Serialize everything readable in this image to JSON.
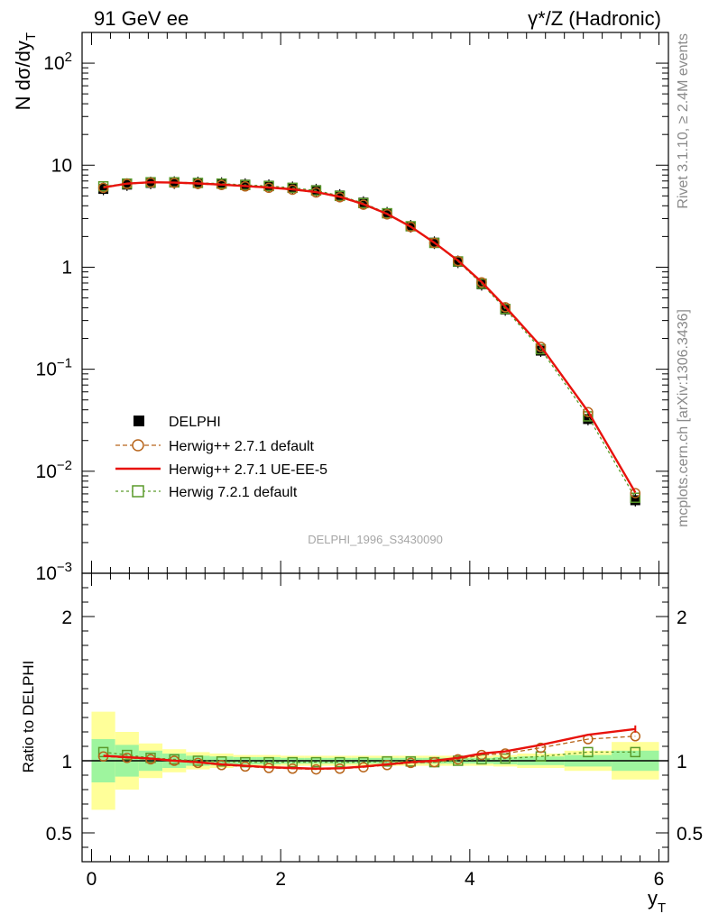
{
  "header": {
    "left": "91 GeV ee",
    "right": "γ*/Z (Hadronic)"
  },
  "side_texts": {
    "rivet": "Rivet 3.1.10, ≥ 2.4M events",
    "mcplots": "mcplots.cern.ch [arXiv:1306.3436]"
  },
  "watermark": "DELPHI_1996_S3430090",
  "chart_data": [
    {
      "type": "scatter",
      "panel": "main",
      "ylabel": "N dσ/dy_T",
      "yscale": "log",
      "ylim": [
        0.001,
        200
      ],
      "xlim": [
        -0.1,
        6.1
      ],
      "yticks": [
        {
          "value": 100,
          "label": "10^2"
        },
        {
          "value": 10,
          "label": "10"
        },
        {
          "value": 1,
          "label": "1"
        },
        {
          "value": 0.1,
          "label": "10^-1"
        },
        {
          "value": 0.01,
          "label": "10^-2"
        },
        {
          "value": 0.001,
          "label": "10^-3"
        }
      ],
      "x": [
        0.125,
        0.375,
        0.625,
        0.875,
        1.125,
        1.375,
        1.625,
        1.875,
        2.125,
        2.375,
        2.625,
        2.875,
        3.125,
        3.375,
        3.625,
        3.875,
        4.125,
        4.375,
        4.75,
        5.25,
        5.75
      ],
      "legend": {
        "position": "bottom-left"
      },
      "series": [
        {
          "name": "DELPHI",
          "style": "data",
          "color": "#000000",
          "values": [
            5.85,
            6.45,
            6.7,
            6.75,
            6.7,
            6.6,
            6.45,
            6.3,
            6.0,
            5.7,
            5.05,
            4.3,
            3.38,
            2.52,
            1.74,
            1.13,
            0.68,
            0.385,
            0.152,
            0.0325,
            0.0052
          ]
        },
        {
          "name": "Herwig++ 2.7.1 default",
          "style": "circle-dashed",
          "color": "#b8651b",
          "values": [
            6.0,
            6.55,
            6.75,
            6.7,
            6.55,
            6.4,
            6.2,
            6.0,
            5.75,
            5.4,
            4.85,
            4.1,
            3.3,
            2.48,
            1.73,
            1.15,
            0.71,
            0.405,
            0.166,
            0.038,
            0.0061
          ]
        },
        {
          "name": "Herwig++ 2.7.1 UE-EE-5",
          "style": "line",
          "color": "#e8120c",
          "values": [
            6.05,
            6.6,
            6.8,
            6.75,
            6.62,
            6.45,
            6.25,
            6.05,
            5.8,
            5.45,
            4.9,
            4.15,
            3.33,
            2.5,
            1.74,
            1.16,
            0.715,
            0.41,
            0.168,
            0.0385,
            0.0062
          ]
        },
        {
          "name": "Herwig 7.2.1 default",
          "style": "square-dashed",
          "color": "#5a9a2a",
          "values": [
            6.2,
            6.6,
            6.8,
            6.8,
            6.7,
            6.6,
            6.4,
            6.25,
            6.0,
            5.65,
            5.0,
            4.25,
            3.38,
            2.52,
            1.73,
            1.14,
            0.69,
            0.39,
            0.157,
            0.0345,
            0.0055
          ]
        }
      ]
    },
    {
      "type": "scatter",
      "panel": "ratio",
      "ylabel": "Ratio to DELPHI",
      "xlabel": "y_T",
      "ylim": [
        0.3,
        2.3
      ],
      "xlim": [
        -0.1,
        6.1
      ],
      "xticks": [
        0,
        2,
        4,
        6
      ],
      "yticks": [
        0.5,
        1,
        2
      ],
      "x": [
        0.125,
        0.375,
        0.625,
        0.875,
        1.125,
        1.375,
        1.625,
        1.875,
        2.125,
        2.375,
        2.625,
        2.875,
        3.125,
        3.375,
        3.625,
        3.875,
        4.125,
        4.375,
        4.75,
        5.25,
        5.75
      ],
      "band": {
        "edges": [
          0,
          0.25,
          0.5,
          0.75,
          1.0,
          1.25,
          1.5,
          1.75,
          2.0,
          2.25,
          2.5,
          2.75,
          3.0,
          3.25,
          3.5,
          3.75,
          4.0,
          4.25,
          4.5,
          5.0,
          5.5,
          6.0
        ],
        "inner": [
          0.15,
          0.11,
          0.07,
          0.05,
          0.035,
          0.03,
          0.025,
          0.025,
          0.02,
          0.02,
          0.02,
          0.02,
          0.02,
          0.02,
          0.02,
          0.02,
          0.02,
          0.025,
          0.03,
          0.04,
          0.07
        ],
        "outer": [
          0.34,
          0.2,
          0.12,
          0.08,
          0.06,
          0.05,
          0.04,
          0.04,
          0.035,
          0.035,
          0.035,
          0.035,
          0.035,
          0.035,
          0.035,
          0.035,
          0.035,
          0.04,
          0.05,
          0.07,
          0.13
        ],
        "inner_color": "#9ef59e",
        "outer_color": "#ffff99"
      },
      "series": [
        {
          "name": "Herwig++ 2.7.1 default",
          "style": "circle-dashed",
          "color": "#b8651b",
          "values": [
            1.03,
            1.02,
            1.01,
            1.0,
            0.985,
            0.97,
            0.96,
            0.95,
            0.945,
            0.94,
            0.945,
            0.955,
            0.97,
            0.985,
            0.99,
            1.01,
            1.04,
            1.05,
            1.09,
            1.15,
            1.17
          ]
        },
        {
          "name": "Herwig++ 2.7.1 UE-EE-5",
          "style": "line",
          "color": "#e8120c",
          "values": [
            1.035,
            1.025,
            1.015,
            1.0,
            0.99,
            0.975,
            0.965,
            0.955,
            0.95,
            0.945,
            0.948,
            0.96,
            0.975,
            0.99,
            1.0,
            1.02,
            1.05,
            1.065,
            1.11,
            1.18,
            1.22
          ]
        },
        {
          "name": "Herwig 7.2.1 default",
          "style": "square-dashed",
          "color": "#5a9a2a",
          "values": [
            1.06,
            1.04,
            1.02,
            1.01,
            1.0,
            0.995,
            0.99,
            0.99,
            0.99,
            0.99,
            0.99,
            0.99,
            0.995,
            0.995,
            0.99,
            1.0,
            1.01,
            1.015,
            1.03,
            1.06,
            1.06
          ]
        }
      ]
    }
  ]
}
